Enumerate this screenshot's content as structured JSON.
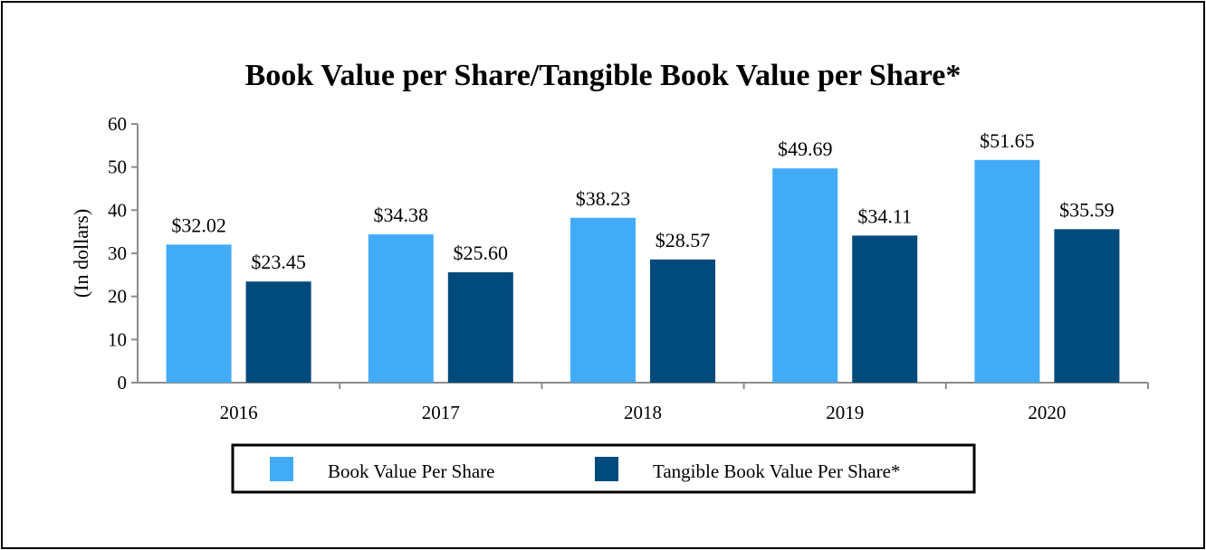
{
  "chart_data": {
    "type": "bar",
    "title": "Book Value per Share/Tangible Book Value per Share*",
    "xlabel": "",
    "ylabel": "(In dollars)",
    "ylim": [
      0,
      60
    ],
    "yticks": [
      0,
      10,
      20,
      30,
      40,
      50,
      60
    ],
    "categories": [
      "2016",
      "2017",
      "2018",
      "2019",
      "2020"
    ],
    "series": [
      {
        "name": "Book Value Per Share",
        "color": "#42ABF8",
        "values": [
          32.02,
          34.38,
          38.23,
          49.69,
          51.65
        ],
        "labels": [
          "$32.02",
          "$34.38",
          "$38.23",
          "$49.69",
          "$51.65"
        ]
      },
      {
        "name": "Tangible Book Value Per Share*",
        "color": "#004A7C",
        "values": [
          23.45,
          25.6,
          28.57,
          34.11,
          35.59
        ],
        "labels": [
          "$23.45",
          "$25.60",
          "$28.57",
          "$34.11",
          "$35.59"
        ]
      }
    ],
    "legend": "bottom",
    "grid": false
  }
}
